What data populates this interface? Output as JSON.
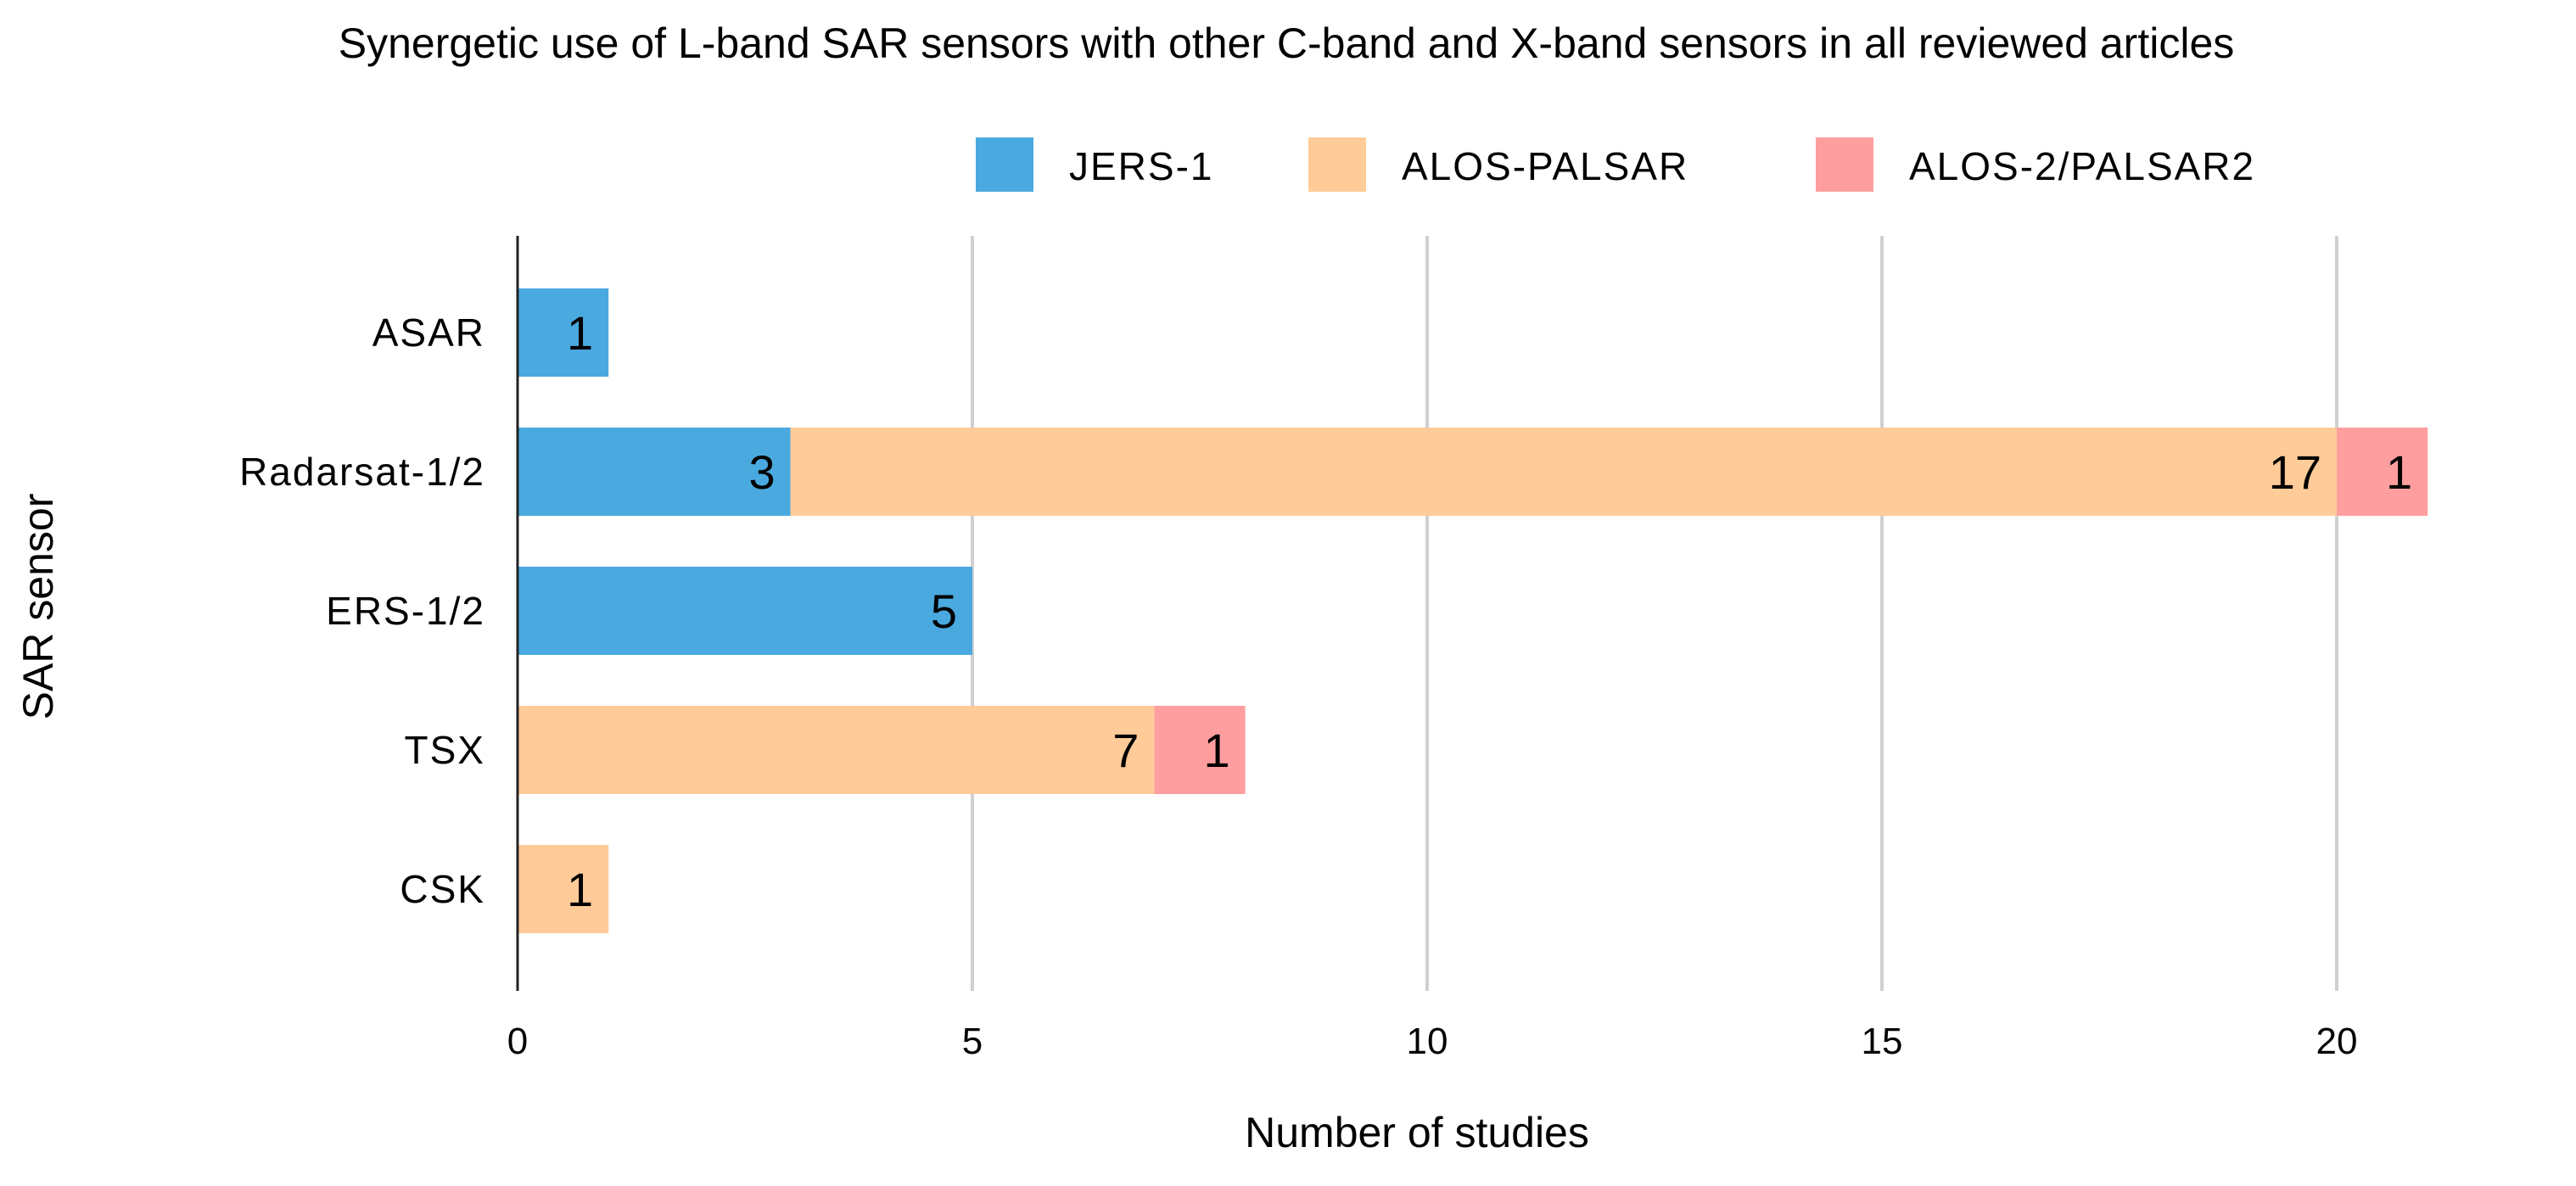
{
  "chart_data": {
    "type": "bar",
    "orientation": "horizontal",
    "stacked": true,
    "title": "Synergetic use of L-band SAR sensors with other C-band and X-band sensors in all reviewed articles",
    "xlabel": "Number of studies",
    "ylabel": "SAR sensor",
    "xlim": [
      0,
      22
    ],
    "xticks": [
      0,
      5,
      10,
      15,
      20
    ],
    "grid": true,
    "legend_position": "top-right",
    "categories": [
      "ASAR",
      "Radarsat-1/2",
      "ERS-1/2",
      "TSX",
      "CSK"
    ],
    "series": [
      {
        "name": "JERS-1",
        "color": "#4aa9df",
        "values": [
          1,
          3,
          5,
          0,
          0
        ]
      },
      {
        "name": "ALOS-PALSAR",
        "color": "#ffcc99",
        "values": [
          0,
          17,
          0,
          7,
          1
        ]
      },
      {
        "name": "ALOS-2/PALSAR2",
        "color": "#ff9e9e",
        "values": [
          0,
          1,
          0,
          1,
          0
        ]
      }
    ]
  }
}
